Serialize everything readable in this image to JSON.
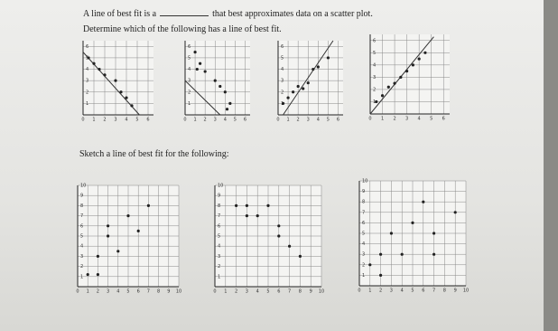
{
  "question": {
    "before": "A line of best fit is a",
    "after": "that best approximates data on a scatter plot."
  },
  "instruction": "Determine which of the following has a line of best fit.",
  "top_ticks": [
    0,
    1,
    2,
    3,
    4,
    5,
    6
  ],
  "top_lim": [
    0,
    6.5
  ],
  "top_plots": [
    {
      "points": [
        [
          0.5,
          5
        ],
        [
          1,
          4.5
        ],
        [
          1.5,
          4
        ],
        [
          2,
          3.5
        ],
        [
          3,
          3
        ],
        [
          3.5,
          2
        ],
        [
          4,
          1.5
        ],
        [
          4.5,
          0.8
        ]
      ],
      "line": [
        [
          0,
          5.5
        ],
        [
          5.2,
          0
        ]
      ]
    },
    {
      "points": [
        [
          1,
          5.5
        ],
        [
          1.5,
          4.5
        ],
        [
          1.2,
          4
        ],
        [
          2,
          3.8
        ],
        [
          3,
          3
        ],
        [
          3.5,
          2.5
        ],
        [
          4,
          2
        ],
        [
          4.5,
          1
        ],
        [
          4.2,
          0.5
        ]
      ],
      "line": [
        [
          0,
          3
        ],
        [
          3.5,
          0
        ]
      ]
    },
    {
      "points": [
        [
          0.5,
          1
        ],
        [
          1,
          1.5
        ],
        [
          1.5,
          2
        ],
        [
          2,
          2.5
        ],
        [
          2.5,
          2.3
        ],
        [
          3,
          2.8
        ],
        [
          3.5,
          4
        ],
        [
          4,
          4.2
        ],
        [
          5,
          5
        ]
      ],
      "line": [
        [
          0.5,
          0
        ],
        [
          5.5,
          6.5
        ]
      ]
    },
    {
      "points": [
        [
          0.5,
          1
        ],
        [
          1,
          1.5
        ],
        [
          1.5,
          2.2
        ],
        [
          2,
          2.5
        ],
        [
          2.5,
          3
        ],
        [
          3,
          3.5
        ],
        [
          3.5,
          4
        ],
        [
          4,
          4.5
        ],
        [
          4.5,
          5
        ]
      ],
      "line": [
        [
          0,
          0
        ],
        [
          5.2,
          6.3
        ]
      ]
    }
  ],
  "sketch_instruction": "Sketch a line of best fit for the following:",
  "bottom_ticks": [
    0,
    1,
    2,
    3,
    4,
    5,
    6,
    7,
    8,
    9,
    10
  ],
  "bottom_lim": [
    0,
    10
  ],
  "bottom_plots": [
    {
      "points": [
        [
          1,
          1.2
        ],
        [
          2,
          1.2
        ],
        [
          2,
          3
        ],
        [
          3,
          5
        ],
        [
          3,
          6
        ],
        [
          4,
          3.5
        ],
        [
          5,
          7
        ],
        [
          6,
          5.5
        ],
        [
          7,
          8
        ]
      ]
    },
    {
      "points": [
        [
          2,
          8
        ],
        [
          3,
          7
        ],
        [
          4,
          7
        ],
        [
          3,
          8
        ],
        [
          5,
          8
        ],
        [
          6,
          6
        ],
        [
          6,
          5
        ],
        [
          7,
          4
        ],
        [
          8,
          3
        ]
      ]
    },
    {
      "points": [
        [
          1,
          2
        ],
        [
          2,
          1
        ],
        [
          2,
          3
        ],
        [
          3,
          5
        ],
        [
          4,
          3
        ],
        [
          5,
          6
        ],
        [
          6,
          8
        ],
        [
          7,
          3
        ],
        [
          7,
          5
        ],
        [
          9,
          7
        ]
      ]
    }
  ]
}
